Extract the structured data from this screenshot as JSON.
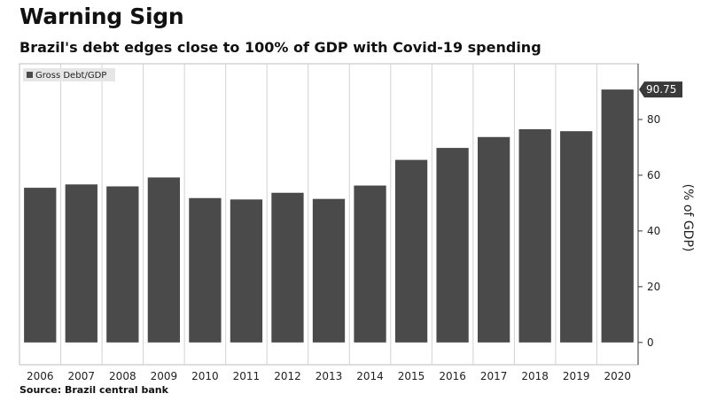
{
  "title": "Warning Sign",
  "subtitle": "Brazil's debt edges close to 100% of GDP with Covid-19 spending",
  "source": "Source: Brazil central bank",
  "colors": {
    "bar": "#4a4a4a",
    "grid": "#d2d2d2",
    "frame": "#bdbdbd"
  },
  "chart_data": {
    "type": "bar",
    "categories": [
      "2006",
      "2007",
      "2008",
      "2009",
      "2010",
      "2011",
      "2012",
      "2013",
      "2014",
      "2015",
      "2016",
      "2017",
      "2018",
      "2019",
      "2020"
    ],
    "series": [
      {
        "name": "Gross Debt/GDP",
        "values": [
          55.5,
          56.7,
          56.0,
          59.2,
          51.8,
          51.3,
          53.7,
          51.5,
          56.3,
          65.5,
          69.8,
          73.7,
          76.5,
          75.8,
          90.75
        ]
      }
    ],
    "ylabel": "(% of GDP)",
    "yticks": [
      0,
      20,
      40,
      60,
      80
    ],
    "ylim": [
      -8,
      100
    ],
    "y_axis_side": "right",
    "grid": "vertical",
    "legend_position": "top-left",
    "last_value_label": "90.75"
  }
}
